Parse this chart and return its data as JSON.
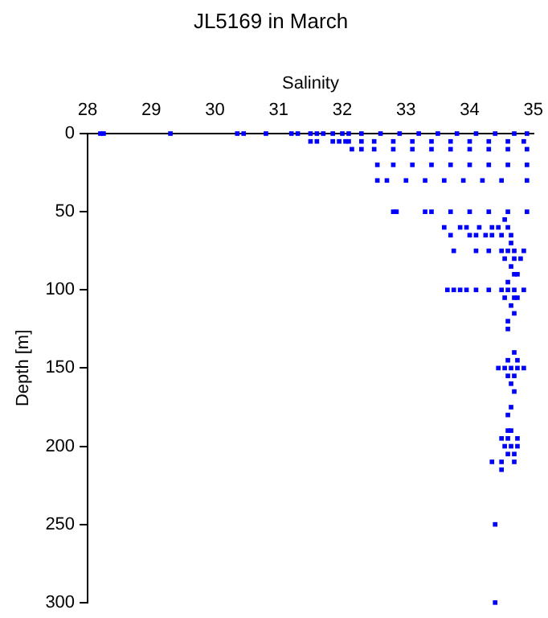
{
  "chart_data": {
    "type": "scatter",
    "title": "JL5169 in March",
    "xlabel": "Salinity",
    "ylabel": "Depth [m]",
    "xlim": [
      28,
      35
    ],
    "xticks": [
      28,
      29,
      30,
      31,
      32,
      33,
      34,
      35
    ],
    "ylim": [
      300,
      0
    ],
    "yticks": [
      0,
      50,
      100,
      150,
      200,
      250,
      300
    ],
    "grid": false,
    "legend": false,
    "marker": "square",
    "series": [
      {
        "color": "#0000ff",
        "x": [
          28.2,
          28.25,
          29.3,
          30.35,
          30.45,
          30.8,
          31.2,
          31.3,
          31.5,
          31.6,
          31.7,
          31.85,
          32.0,
          32.1,
          32.3,
          32.6,
          32.9,
          33.2,
          33.5,
          33.8,
          34.1,
          34.4,
          34.7,
          34.9,
          31.5,
          31.6,
          31.85,
          31.95,
          32.05,
          32.1,
          32.3,
          32.5,
          32.8,
          33.1,
          33.4,
          33.7,
          34.0,
          34.3,
          34.6,
          34.85,
          32.15,
          32.3,
          32.5,
          32.8,
          33.1,
          33.4,
          33.7,
          34.0,
          34.3,
          34.6,
          34.9,
          32.55,
          32.8,
          33.1,
          33.4,
          33.7,
          34.0,
          34.3,
          34.6,
          34.9,
          32.55,
          32.7,
          33.0,
          33.3,
          33.6,
          33.9,
          34.2,
          34.5,
          34.9,
          32.8,
          32.85,
          33.3,
          33.4,
          33.7,
          34.0,
          34.3,
          34.6,
          34.9,
          34.55,
          33.6,
          33.85,
          33.95,
          34.15,
          34.35,
          34.45,
          34.6,
          33.7,
          34.0,
          34.1,
          34.25,
          34.35,
          34.5,
          34.65,
          33.75,
          34.1,
          34.3,
          34.5,
          34.6,
          34.7,
          34.85,
          34.65,
          34.55,
          34.7,
          34.8,
          34.65,
          34.7,
          34.75,
          33.65,
          33.75,
          33.85,
          33.95,
          34.1,
          34.3,
          34.5,
          34.6,
          34.7,
          34.85,
          34.6,
          34.55,
          34.7,
          34.75,
          34.65,
          34.7,
          34.6,
          34.6,
          34.7,
          34.6,
          34.75,
          34.45,
          34.55,
          34.65,
          34.75,
          34.85,
          34.6,
          34.7,
          34.65,
          34.7,
          34.65,
          34.6,
          34.6,
          34.65,
          34.5,
          34.6,
          34.75,
          34.55,
          34.65,
          34.75,
          34.6,
          34.7,
          34.35,
          34.5,
          34.7,
          34.5,
          34.4,
          34.4
        ],
        "values": [
          0,
          0,
          0,
          0,
          0,
          0,
          0,
          0,
          0,
          0,
          0,
          0,
          0,
          0,
          0,
          0,
          0,
          0,
          0,
          0,
          0,
          0,
          0,
          0,
          5,
          5,
          5,
          5,
          5,
          5,
          5,
          5,
          5,
          5,
          5,
          5,
          5,
          5,
          5,
          5,
          10,
          10,
          10,
          10,
          10,
          10,
          10,
          10,
          10,
          10,
          10,
          20,
          20,
          20,
          20,
          20,
          20,
          20,
          20,
          20,
          30,
          30,
          30,
          30,
          30,
          30,
          30,
          30,
          30,
          50,
          50,
          50,
          50,
          50,
          50,
          50,
          50,
          50,
          55,
          60,
          60,
          60,
          60,
          60,
          60,
          60,
          65,
          65,
          65,
          65,
          65,
          65,
          65,
          75,
          75,
          75,
          75,
          75,
          75,
          75,
          70,
          80,
          80,
          80,
          85,
          90,
          90,
          100,
          100,
          100,
          100,
          100,
          100,
          100,
          100,
          100,
          100,
          95,
          105,
          105,
          105,
          110,
          115,
          120,
          125,
          140,
          145,
          145,
          150,
          150,
          150,
          150,
          150,
          155,
          155,
          160,
          165,
          175,
          180,
          190,
          190,
          195,
          195,
          195,
          200,
          200,
          200,
          205,
          205,
          210,
          210,
          210,
          215,
          250,
          300
        ]
      }
    ]
  }
}
